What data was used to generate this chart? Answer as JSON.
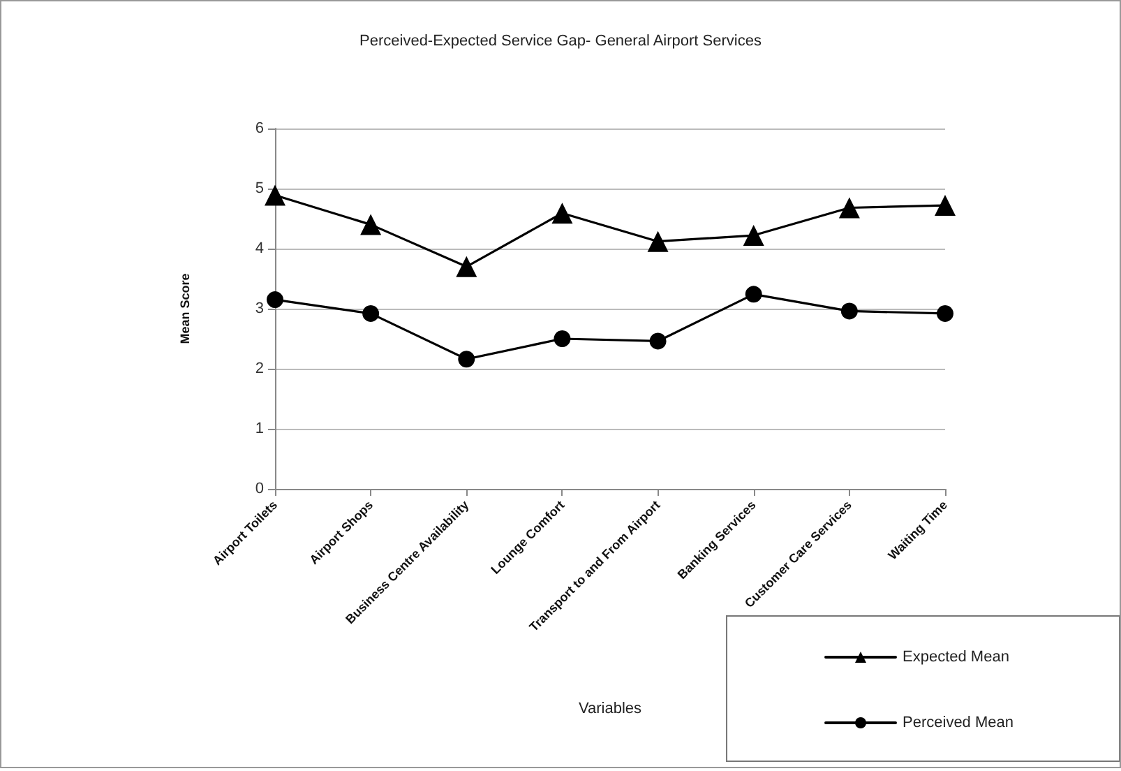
{
  "chart_data": {
    "type": "line",
    "title": "Perceived-Expected Service Gap- General Airport Services",
    "xlabel": "Variables",
    "ylabel": "Mean Score",
    "categories": [
      "Airport Toilets",
      "Airport Shops",
      "Business Centre Availability",
      "Lounge Comfort",
      "Transport to and From Airport",
      "Banking Services",
      "Customer Care Services",
      "Waiting Time"
    ],
    "series": [
      {
        "name": "Expected Mean",
        "color": "#000000",
        "marker": "triangle",
        "values": [
          4.89,
          4.4,
          3.7,
          4.59,
          4.12,
          4.22,
          4.68,
          4.72
        ]
      },
      {
        "name": "Perceived Mean",
        "color": "#000000",
        "marker": "circle",
        "values": [
          3.15,
          2.92,
          2.16,
          2.5,
          2.46,
          3.24,
          2.96,
          2.92
        ]
      }
    ],
    "ylim": [
      0,
      6
    ],
    "yticks": [
      0,
      1,
      2,
      3,
      4,
      5,
      6
    ],
    "grid": "y",
    "legend": "bottom right",
    "line_style": "solid"
  }
}
